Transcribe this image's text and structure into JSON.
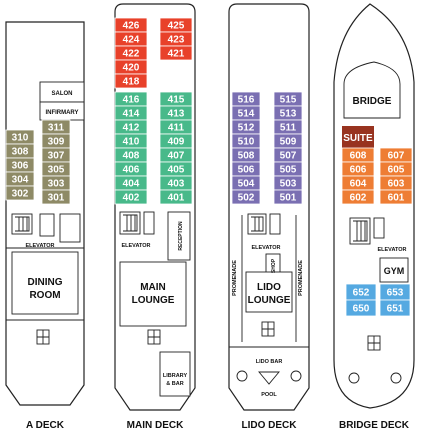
{
  "colors": {
    "red": "#e8412a",
    "green": "#48b98a",
    "olive": "#8e8a66",
    "purple": "#7a6fb2",
    "orange": "#ee7d34",
    "blue": "#55a9e1",
    "suite": "#98331f",
    "outline": "#222222"
  },
  "decks": [
    {
      "key": "a",
      "title": "A DECK"
    },
    {
      "key": "main",
      "title": "MAIN DECK"
    },
    {
      "key": "lido",
      "title": "LIDO DECK"
    },
    {
      "key": "bridge",
      "title": "BRIDGE DECK"
    }
  ],
  "labels": {
    "a_salon": "SALON",
    "a_infirmary": "INFIRMARY",
    "a_elevator": "ELEVATOR",
    "a_dining_1": "DINING",
    "a_dining_2": "ROOM",
    "main_elevator": "ELEVATOR",
    "main_reception": "RECEPTION",
    "main_lounge_1": "MAIN",
    "main_lounge_2": "LOUNGE",
    "main_library_1": "LIBRARY",
    "main_library_2": "& BAR",
    "lido_promenade_left": "PROMENADE",
    "lido_promenade_right": "PROMENADE",
    "lido_elevator": "ELEVATOR",
    "lido_shop": "SHOP",
    "lido_lounge_1": "LIDO",
    "lido_lounge_2": "LOUNGE",
    "lido_bar": "LIDO BAR",
    "lido_pool": "POOL",
    "bridge_bridge": "BRIDGE",
    "bridge_suite": "SUITE",
    "bridge_elevator": "ELEVATOR",
    "bridge_gym": "GYM"
  },
  "cabins": {
    "a_left": [
      "310",
      "308",
      "306",
      "304",
      "302"
    ],
    "a_right": [
      "311",
      "309",
      "307",
      "305",
      "303",
      "301"
    ],
    "main_red_left": [
      "426",
      "424",
      "422",
      "420",
      "418"
    ],
    "main_red_right": [
      "425",
      "423",
      "421"
    ],
    "main_green_left": [
      "416",
      "414",
      "412",
      "410",
      "408",
      "406",
      "404",
      "402"
    ],
    "main_green_right": [
      "415",
      "413",
      "411",
      "409",
      "407",
      "405",
      "403",
      "401"
    ],
    "lido_left": [
      "516",
      "514",
      "512",
      "510",
      "508",
      "506",
      "504",
      "502"
    ],
    "lido_right": [
      "515",
      "513",
      "511",
      "509",
      "507",
      "505",
      "503",
      "501"
    ],
    "bridge_left": [
      "608",
      "606",
      "604",
      "602"
    ],
    "bridge_right": [
      "607",
      "605",
      "603",
      "601"
    ],
    "bridge_blue_left": [
      "652",
      "650"
    ],
    "bridge_blue_right": [
      "653",
      "651"
    ]
  }
}
